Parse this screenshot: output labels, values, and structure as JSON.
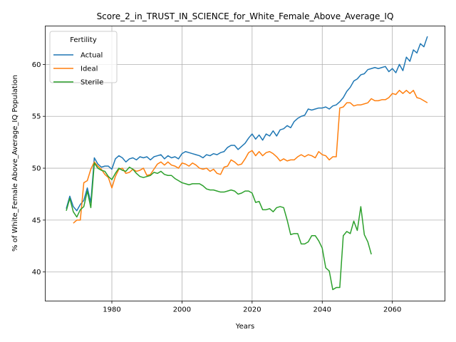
{
  "chart_data": {
    "type": "line",
    "title": "Score_2_in_TRUST_IN_SCIENCE_for_White_Female_Above_Average_IQ",
    "xlabel": "Years",
    "ylabel": "% of White_Female Above_Average_IQ Population",
    "xlim": [
      1961,
      2075
    ],
    "ylim": [
      37.2,
      63.7
    ],
    "xticks": [
      1980,
      2000,
      2020,
      2040,
      2060
    ],
    "yticks": [
      40,
      45,
      50,
      55,
      60
    ],
    "grid": true,
    "legend": {
      "title": "Fertility",
      "placement": "top-left"
    },
    "series": [
      {
        "name": "Actual",
        "color": "#1f77b4",
        "x": [
          1967,
          1968,
          1969,
          1970,
          1971,
          1972,
          1973,
          1974,
          1975,
          1976,
          1977,
          1978,
          1979,
          1980,
          1981,
          1982,
          1983,
          1984,
          1985,
          1986,
          1987,
          1988,
          1989,
          1990,
          1991,
          1992,
          1993,
          1994,
          1995,
          1996,
          1997,
          1998,
          1999,
          2000,
          2001,
          2002,
          2003,
          2004,
          2005,
          2006,
          2007,
          2008,
          2009,
          2010,
          2011,
          2012,
          2013,
          2014,
          2015,
          2016,
          2017,
          2018,
          2019,
          2020,
          2021,
          2022,
          2023,
          2024,
          2025,
          2026,
          2027,
          2028,
          2029,
          2030,
          2031,
          2032,
          2033,
          2034,
          2035,
          2036,
          2037,
          2038,
          2039,
          2040,
          2041,
          2042,
          2043,
          2044,
          2045,
          2046,
          2047,
          2048,
          2049,
          2050,
          2051,
          2052,
          2053,
          2054,
          2055,
          2056,
          2057,
          2058,
          2059,
          2060,
          2061,
          2062,
          2063,
          2064,
          2065,
          2066,
          2067,
          2068,
          2069,
          2070
        ],
        "y": [
          46.1,
          47.3,
          46.3,
          45.9,
          46.5,
          46.9,
          48.1,
          46.7,
          51.0,
          50.4,
          50.1,
          50.2,
          50.2,
          49.9,
          50.9,
          51.2,
          51.0,
          50.6,
          50.9,
          51.0,
          50.8,
          51.1,
          51.0,
          51.1,
          50.8,
          51.1,
          51.2,
          51.3,
          50.9,
          51.2,
          51.0,
          51.1,
          50.9,
          51.4,
          51.6,
          51.5,
          51.4,
          51.3,
          51.2,
          51.0,
          51.3,
          51.2,
          51.4,
          51.3,
          51.5,
          51.6,
          52.0,
          52.2,
          52.2,
          51.8,
          52.1,
          52.4,
          52.9,
          53.3,
          52.8,
          53.2,
          52.7,
          53.3,
          53.1,
          53.6,
          53.1,
          53.7,
          53.8,
          54.1,
          53.9,
          54.5,
          54.8,
          55.0,
          55.1,
          55.7,
          55.6,
          55.7,
          55.8,
          55.8,
          55.9,
          55.7,
          56.0,
          56.1,
          56.4,
          56.8,
          57.4,
          57.8,
          58.4,
          58.6,
          59.0,
          59.1,
          59.5,
          59.6,
          59.7,
          59.6,
          59.7,
          59.8,
          59.3,
          59.6,
          59.2,
          60.0,
          59.4,
          60.7,
          60.3,
          61.4,
          61.1,
          62.0,
          61.7,
          62.7
        ]
      },
      {
        "name": "Ideal",
        "color": "#ff7f0e",
        "x": [
          1969,
          1970,
          1971,
          1972,
          1973,
          1974,
          1975,
          1976,
          1977,
          1978,
          1979,
          1980,
          1981,
          1982,
          1983,
          1984,
          1985,
          1986,
          1987,
          1988,
          1989,
          1990,
          1991,
          1992,
          1993,
          1994,
          1995,
          1996,
          1997,
          1998,
          1999,
          2000,
          2001,
          2002,
          2003,
          2004,
          2005,
          2006,
          2007,
          2008,
          2009,
          2010,
          2011,
          2012,
          2013,
          2014,
          2015,
          2016,
          2017,
          2018,
          2019,
          2020,
          2021,
          2022,
          2023,
          2024,
          2025,
          2026,
          2027,
          2028,
          2029,
          2030,
          2031,
          2032,
          2033,
          2034,
          2035,
          2036,
          2037,
          2038,
          2039,
          2040,
          2041,
          2042,
          2043,
          2044,
          2045,
          2046,
          2047,
          2048,
          2049,
          2050,
          2051,
          2052,
          2053,
          2054,
          2055,
          2056,
          2057,
          2058,
          2059,
          2060,
          2061,
          2062,
          2063,
          2064,
          2065,
          2066,
          2067,
          2068,
          2069,
          2070
        ],
        "y": [
          44.7,
          45.0,
          45.0,
          48.6,
          48.8,
          49.9,
          50.6,
          50.2,
          49.9,
          49.4,
          49.1,
          48.1,
          49.2,
          49.9,
          50.0,
          49.5,
          49.6,
          49.9,
          49.7,
          49.8,
          50.0,
          49.3,
          49.4,
          49.9,
          50.4,
          50.6,
          50.3,
          50.6,
          50.3,
          50.2,
          50.0,
          50.5,
          50.4,
          50.2,
          50.5,
          50.3,
          50.0,
          49.9,
          50.0,
          49.7,
          49.9,
          49.5,
          49.4,
          50.1,
          50.2,
          50.8,
          50.6,
          50.3,
          50.4,
          50.9,
          51.5,
          51.7,
          51.2,
          51.6,
          51.2,
          51.5,
          51.6,
          51.4,
          51.1,
          50.7,
          50.9,
          50.7,
          50.8,
          50.8,
          51.1,
          51.3,
          51.1,
          51.3,
          51.2,
          51.0,
          51.6,
          51.3,
          51.2,
          50.8,
          51.1,
          51.1,
          55.8,
          55.9,
          56.3,
          56.3,
          56.0,
          56.1,
          56.1,
          56.2,
          56.3,
          56.7,
          56.5,
          56.5,
          56.6,
          56.6,
          56.8,
          57.2,
          57.1,
          57.5,
          57.2,
          57.5,
          57.2,
          57.5,
          56.8,
          56.7,
          56.5,
          56.3
        ]
      },
      {
        "name": "Sterile",
        "color": "#2ca02c",
        "x": [
          1967,
          1968,
          1969,
          1970,
          1971,
          1972,
          1973,
          1974,
          1975,
          1976,
          1977,
          1978,
          1979,
          1980,
          1981,
          1982,
          1983,
          1984,
          1985,
          1986,
          1987,
          1988,
          1989,
          1990,
          1991,
          1992,
          1993,
          1994,
          1995,
          1996,
          1997,
          1998,
          1999,
          2000,
          2001,
          2002,
          2003,
          2004,
          2005,
          2006,
          2007,
          2008,
          2009,
          2010,
          2011,
          2012,
          2013,
          2014,
          2015,
          2016,
          2017,
          2018,
          2019,
          2020,
          2021,
          2022,
          2023,
          2024,
          2025,
          2026,
          2027,
          2028,
          2029,
          2030,
          2031,
          2032,
          2033,
          2034,
          2035,
          2036,
          2037,
          2038,
          2039,
          2040,
          2041,
          2042,
          2043,
          2044,
          2045,
          2046,
          2047,
          2048,
          2049,
          2050,
          2051,
          2052,
          2053,
          2054
        ],
        "y": [
          45.9,
          47.1,
          45.8,
          45.3,
          46.0,
          46.3,
          47.8,
          46.2,
          50.5,
          50.0,
          49.8,
          49.7,
          49.2,
          48.9,
          49.5,
          50.0,
          49.8,
          49.7,
          50.1,
          49.9,
          49.5,
          49.2,
          49.1,
          49.2,
          49.3,
          49.6,
          49.5,
          49.7,
          49.4,
          49.3,
          49.3,
          49.0,
          48.8,
          48.6,
          48.5,
          48.4,
          48.5,
          48.5,
          48.5,
          48.3,
          48.0,
          47.9,
          47.9,
          47.8,
          47.7,
          47.7,
          47.8,
          47.9,
          47.8,
          47.5,
          47.6,
          47.8,
          47.8,
          47.6,
          46.7,
          46.8,
          46.0,
          46.0,
          46.1,
          45.8,
          46.2,
          46.3,
          46.2,
          45.0,
          43.6,
          43.7,
          43.7,
          42.7,
          42.7,
          42.9,
          43.5,
          43.5,
          43.0,
          42.3,
          40.4,
          40.1,
          38.3,
          38.5,
          38.5,
          43.5,
          43.9,
          43.7,
          44.9,
          44.0,
          46.3,
          43.6,
          42.9,
          41.7
        ]
      }
    ]
  }
}
